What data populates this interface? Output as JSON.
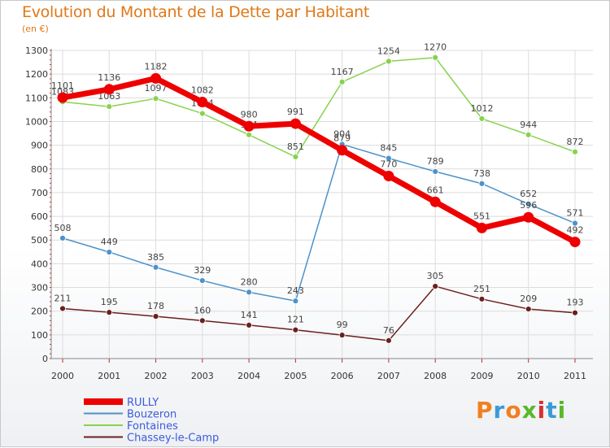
{
  "title": "Evolution du Montant de la Dette par Habitant",
  "unit": "(en €)",
  "brand": {
    "text": "Proxiti",
    "letter_colors": [
      "#f08020",
      "#3a9ad9",
      "#f08020",
      "#5ab82a",
      "#d83030",
      "#3a9ad9",
      "#5ab82a"
    ]
  },
  "chart_data": {
    "type": "line",
    "x": [
      "2000",
      "2001",
      "2002",
      "2003",
      "2004",
      "2005",
      "2006",
      "2007",
      "2008",
      "2009",
      "2010",
      "2011"
    ],
    "ylim": [
      0,
      1300
    ],
    "yticks": [
      0,
      100,
      200,
      300,
      400,
      500,
      600,
      700,
      800,
      900,
      1000,
      1100,
      1200,
      1300
    ],
    "grid": true,
    "legend_position": "bottom-left",
    "series": [
      {
        "name": "RULLY",
        "color": "#ee0000",
        "values": [
          1101,
          1136,
          1182,
          1082,
          980,
          991,
          879,
          770,
          661,
          551,
          596,
          492
        ]
      },
      {
        "name": "Bouzeron",
        "color": "#4d92c9",
        "values": [
          508,
          449,
          385,
          329,
          280,
          243,
          904,
          845,
          789,
          738,
          652,
          571
        ]
      },
      {
        "name": "Fontaines",
        "color": "#88d24e",
        "values": [
          1083,
          1063,
          1097,
          1034,
          944,
          851,
          1167,
          1254,
          1270,
          1012,
          944,
          872
        ]
      },
      {
        "name": "Chassey-le-Camp",
        "color": "#6b1f1f",
        "values": [
          211,
          195,
          178,
          160,
          141,
          121,
          99,
          76,
          305,
          251,
          209,
          193
        ]
      }
    ]
  }
}
